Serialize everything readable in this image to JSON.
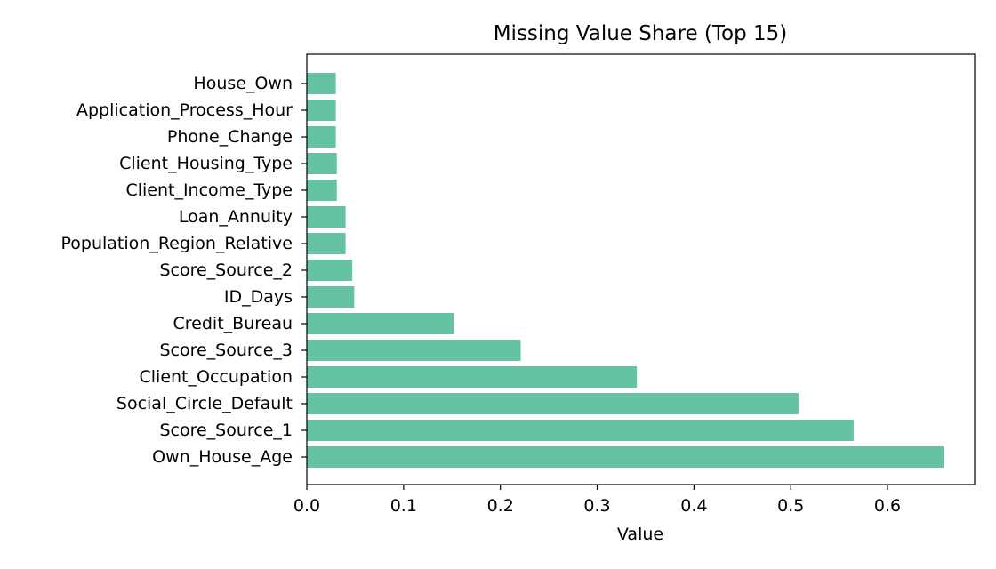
{
  "chart_data": {
    "type": "bar",
    "orientation": "horizontal",
    "title": "Missing Value Share (Top 15)",
    "xlabel": "Value",
    "ylabel": "",
    "xlim": [
      0,
      0.69
    ],
    "xticks": [
      0.0,
      0.1,
      0.2,
      0.3,
      0.4,
      0.5,
      0.6
    ],
    "xtick_labels": [
      "0.0",
      "0.1",
      "0.2",
      "0.3",
      "0.4",
      "0.5",
      "0.6"
    ],
    "grid": false,
    "bar_color": "#66c2a5",
    "categories": [
      "Own_House_Age",
      "Score_Source_1",
      "Social_Circle_Default",
      "Client_Occupation",
      "Score_Source_3",
      "Credit_Bureau",
      "ID_Days",
      "Score_Source_2",
      "Population_Region_Relative",
      "Loan_Annuity",
      "Client_Income_Type",
      "Client_Housing_Type",
      "Phone_Change",
      "Application_Process_Hour",
      "House_Own"
    ],
    "values": [
      0.658,
      0.565,
      0.508,
      0.341,
      0.221,
      0.152,
      0.049,
      0.047,
      0.04,
      0.04,
      0.031,
      0.031,
      0.03,
      0.03,
      0.03
    ]
  }
}
